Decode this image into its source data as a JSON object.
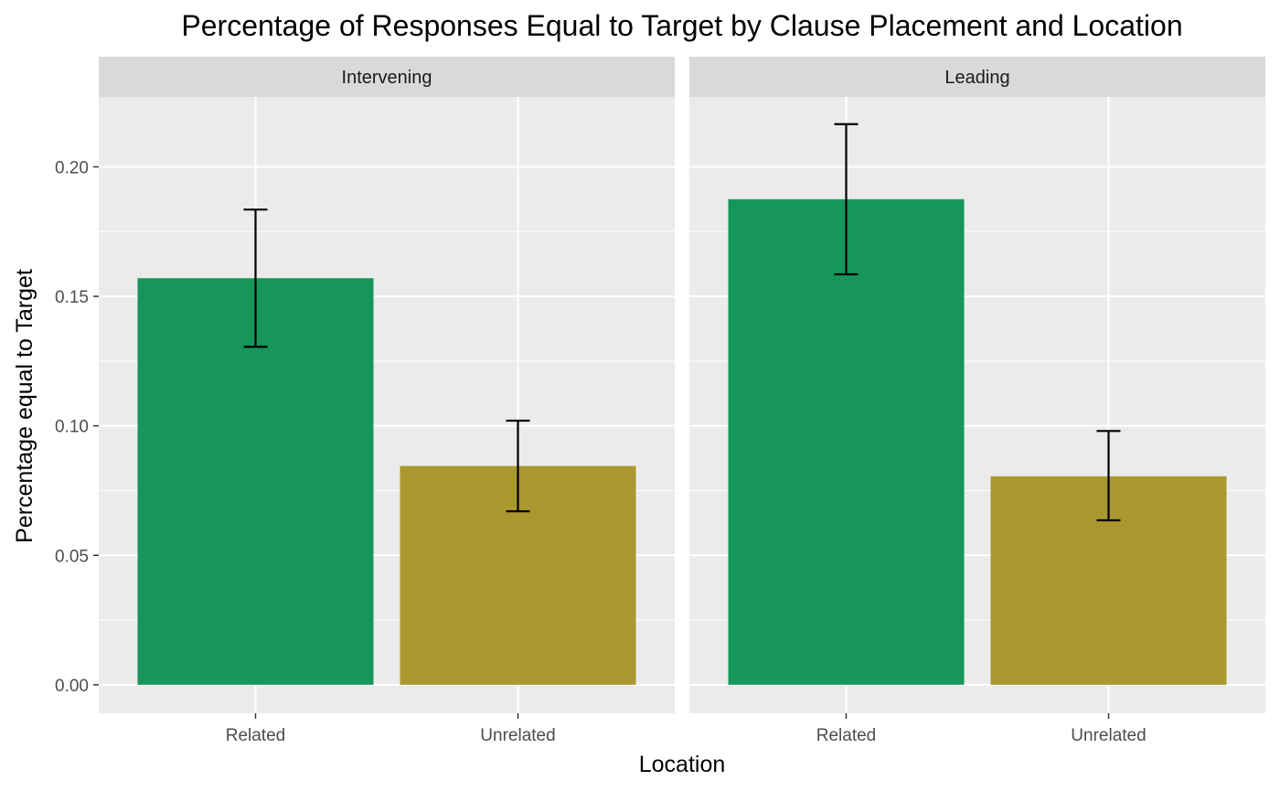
{
  "chart_data": {
    "type": "bar",
    "title": "Percentage of Responses Equal to Target by Clause Placement and Location",
    "xlabel": "Location",
    "ylabel": "Percentage equal to Target",
    "ylim": [
      -0.011,
      0.227
    ],
    "y_ticks": [
      0.0,
      0.05,
      0.1,
      0.15,
      0.2
    ],
    "y_tick_labels": [
      "0.00",
      "0.05",
      "0.10",
      "0.15",
      "0.20"
    ],
    "categories": [
      "Related",
      "Unrelated"
    ],
    "category_colors": [
      "#16965A",
      "#AB972F"
    ],
    "grid": true,
    "legend": "none",
    "panels": [
      {
        "name": "Intervening",
        "values": [
          0.157,
          0.0845
        ],
        "error_low": [
          0.1305,
          0.067
        ],
        "error_high": [
          0.1835,
          0.102
        ]
      },
      {
        "name": "Leading",
        "values": [
          0.1875,
          0.0805
        ],
        "error_low": [
          0.1585,
          0.0635
        ],
        "error_high": [
          0.2165,
          0.098
        ]
      }
    ]
  }
}
